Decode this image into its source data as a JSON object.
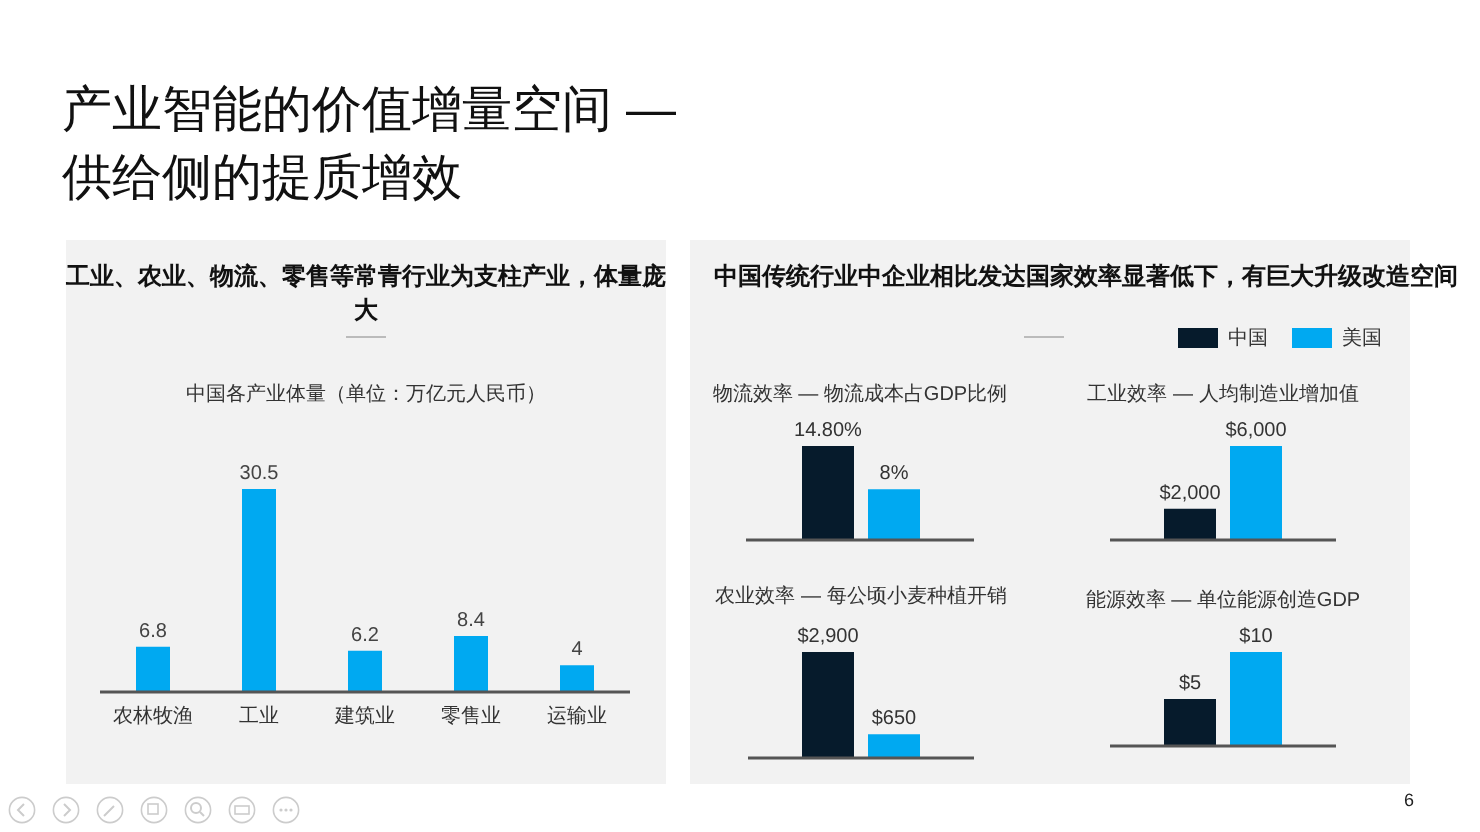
{
  "chart_data": [
    {
      "type": "other",
      "title": "产业智能的价值增量空间 —\n供给侧的提质增效",
      "annotations": [
        "6"
      ]
    },
    {
      "type": "bar",
      "subtitle": "工业、农业、物流、零售等常青行业为支柱产业，体量庞大",
      "title": "中国各产业体量（单位：万亿元人民币）",
      "categories": [
        "农林牧渔",
        "工业",
        "建筑业",
        "零售业",
        "运输业"
      ],
      "values": [
        6.8,
        30.5,
        6.2,
        8.4,
        4
      ],
      "color": "#00a9f1",
      "data_labels": true
    },
    {
      "type": "bar",
      "subtitle": "中国传统行业中企业相比发达国家效率显著低下，有巨大升级改造空间",
      "title": "物流效率 — 物流成本占GDP比例",
      "categories": [
        null
      ],
      "legend": "top right",
      "series": [
        {
          "name": "中国",
          "color": "#061b2c",
          "values": [
            14.8
          ],
          "value_labels": [
            "14.80%"
          ]
        },
        {
          "name": "美国",
          "color": "#00a9f1",
          "values": [
            8
          ],
          "value_labels": [
            "8%"
          ]
        }
      ]
    },
    {
      "type": "bar",
      "title": "工业效率 — 人均制造业增加值",
      "categories": [
        null
      ],
      "series": [
        {
          "color": "#061b2c",
          "values": [
            2000
          ],
          "value_labels": [
            "$2,000"
          ]
        },
        {
          "color": "#00a9f1",
          "values": [
            6000
          ],
          "value_labels": [
            "$6,000"
          ]
        }
      ]
    },
    {
      "type": "bar",
      "title": "农业效率 — 每公顷小麦种植开销",
      "categories": [
        null
      ],
      "series": [
        {
          "color": "#061b2c",
          "values": [
            2900
          ],
          "value_labels": [
            "$2,900"
          ]
        },
        {
          "color": "#00a9f1",
          "values": [
            650
          ],
          "value_labels": [
            "$650"
          ]
        }
      ]
    },
    {
      "type": "bar",
      "title": "能源效率 — 单位能源创造GDP",
      "categories": [
        null
      ],
      "series": [
        {
          "color": "#061b2c",
          "values": [
            5
          ],
          "value_labels": [
            "$5"
          ]
        },
        {
          "color": "#00a9f1",
          "values": [
            10
          ],
          "value_labels": [
            "$10"
          ]
        }
      ]
    }
  ]
}
